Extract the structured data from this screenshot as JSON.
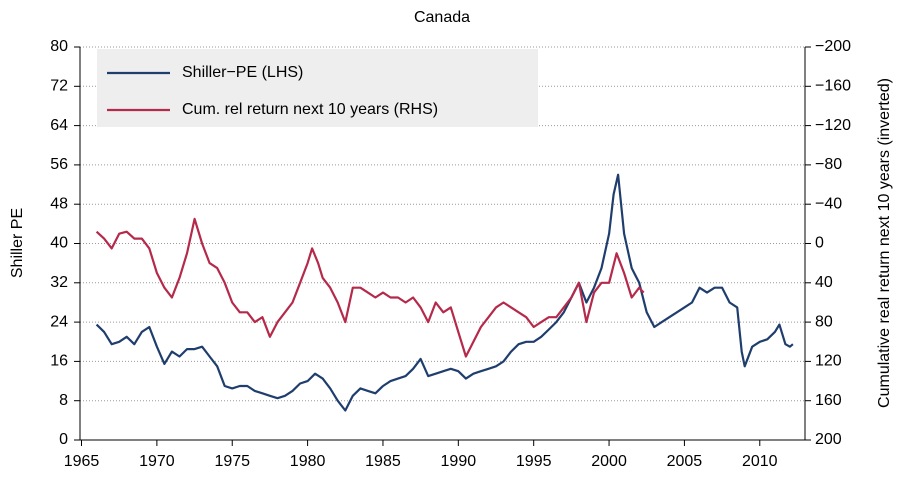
{
  "chart_data": {
    "type": "line",
    "title": "Canada",
    "ylabel": "Shiller PE",
    "y2label": "Cumulative real return next 10 years (inverted)",
    "xlim": [
      1964.9,
      2013.0
    ],
    "xticks": [
      1965,
      1970,
      1975,
      1980,
      1985,
      1990,
      1995,
      2000,
      2005,
      2010
    ],
    "ylim": [
      0,
      80
    ],
    "yticks": [
      0,
      8,
      16,
      24,
      32,
      40,
      48,
      56,
      64,
      72,
      80
    ],
    "y2lim": [
      200,
      -200
    ],
    "y2ticks": [
      {
        "value": 200,
        "label": "200"
      },
      {
        "value": 160,
        "label": "160"
      },
      {
        "value": 120,
        "label": "120"
      },
      {
        "value": 80,
        "label": "80"
      },
      {
        "value": 40,
        "label": "40"
      },
      {
        "value": 0,
        "label": "0"
      },
      {
        "value": -40,
        "label": "−40"
      },
      {
        "value": -80,
        "label": "−80"
      },
      {
        "value": -120,
        "label": "−120"
      },
      {
        "value": -160,
        "label": "−160"
      },
      {
        "value": -200,
        "label": "−200"
      }
    ],
    "grid": true,
    "legend": "upper left",
    "series": [
      {
        "name": "Shiller−PE (LHS)",
        "color": "#1f3e6e",
        "x": [
          1966,
          1966.5,
          1967,
          1967.5,
          1968,
          1968.5,
          1969,
          1969.5,
          1970,
          1970.5,
          1971,
          1971.5,
          1972,
          1972.5,
          1973,
          1973.5,
          1974,
          1974.5,
          1975,
          1975.5,
          1976,
          1976.5,
          1977,
          1977.5,
          1978,
          1978.5,
          1979,
          1979.5,
          1980,
          1980.5,
          1981,
          1981.5,
          1982,
          1982.5,
          1983,
          1983.5,
          1984,
          1984.5,
          1985,
          1985.5,
          1986,
          1986.5,
          1987,
          1987.5,
          1988,
          1988.5,
          1989,
          1989.5,
          1990,
          1990.5,
          1991,
          1991.5,
          1992,
          1992.5,
          1993,
          1993.5,
          1994,
          1994.5,
          1995,
          1995.5,
          1996,
          1996.5,
          1997,
          1997.5,
          1998,
          1998.5,
          1999,
          1999.5,
          2000,
          2000.3,
          2000.6,
          2001,
          2001.5,
          2002,
          2002.5,
          2003,
          2003.5,
          2004,
          2004.5,
          2005,
          2005.5,
          2006,
          2006.5,
          2007,
          2007.5,
          2008,
          2008.5,
          2008.8,
          2009,
          2009.5,
          2010,
          2010.5,
          2011,
          2011.3,
          2011.7,
          2012,
          2012.2
        ],
        "values": [
          23.5,
          22,
          19.5,
          20,
          21,
          19.5,
          22,
          23,
          19,
          15.5,
          18,
          17,
          18.5,
          18.5,
          19,
          17,
          15,
          11,
          10.5,
          11,
          11,
          10,
          9.5,
          9,
          8.5,
          9,
          10,
          11.5,
          12,
          13.5,
          12.5,
          10.5,
          8,
          6,
          9,
          10.5,
          10,
          9.5,
          11,
          12,
          12.5,
          13,
          14.5,
          16.5,
          13,
          13.5,
          14,
          14.5,
          14,
          12.5,
          13.5,
          14,
          14.5,
          15,
          16,
          18,
          19.5,
          20,
          20,
          21,
          22.5,
          24,
          26,
          29,
          32,
          28,
          31,
          35,
          42,
          50,
          54,
          42,
          35,
          32,
          26,
          23,
          24,
          25,
          26,
          27,
          28,
          31,
          30,
          31,
          31,
          28,
          27,
          18,
          15,
          19,
          20,
          20.5,
          22,
          23.5,
          19.5,
          19,
          19.5
        ]
      },
      {
        "name": "Cum. rel return next 10 years (RHS)",
        "color": "#b5294a",
        "axis": "y2",
        "x": [
          1966,
          1966.5,
          1967,
          1967.5,
          1968,
          1968.5,
          1969,
          1969.5,
          1970,
          1970.5,
          1971,
          1971.5,
          1972,
          1972.5,
          1973,
          1973.5,
          1974,
          1974.5,
          1975,
          1975.5,
          1976,
          1976.5,
          1977,
          1977.5,
          1978,
          1978.5,
          1979,
          1979.5,
          1980,
          1980.3,
          1980.7,
          1981,
          1981.5,
          1982,
          1982.5,
          1983,
          1983.5,
          1984,
          1984.5,
          1985,
          1985.5,
          1986,
          1986.5,
          1987,
          1987.5,
          1988,
          1988.5,
          1989,
          1989.5,
          1990,
          1990.5,
          1991,
          1991.5,
          1992,
          1992.5,
          1993,
          1993.5,
          1994,
          1994.5,
          1995,
          1995.5,
          1996,
          1996.5,
          1997,
          1997.5,
          1998,
          1998.5,
          1999,
          1999.5,
          2000,
          2000.5,
          2001,
          2001.5,
          2002,
          2002.3
        ],
        "values": [
          -12,
          -5,
          5,
          -10,
          -12,
          -5,
          -5,
          5,
          30,
          45,
          55,
          35,
          10,
          -25,
          0,
          20,
          25,
          40,
          60,
          70,
          70,
          80,
          75,
          95,
          80,
          70,
          60,
          40,
          20,
          5,
          20,
          35,
          45,
          60,
          80,
          45,
          45,
          50,
          55,
          50,
          55,
          55,
          60,
          55,
          65,
          80,
          60,
          70,
          65,
          90,
          115,
          100,
          85,
          75,
          65,
          60,
          65,
          70,
          75,
          85,
          80,
          75,
          75,
          65,
          55,
          40,
          80,
          50,
          40,
          40,
          10,
          30,
          55,
          45,
          50
        ]
      }
    ]
  }
}
